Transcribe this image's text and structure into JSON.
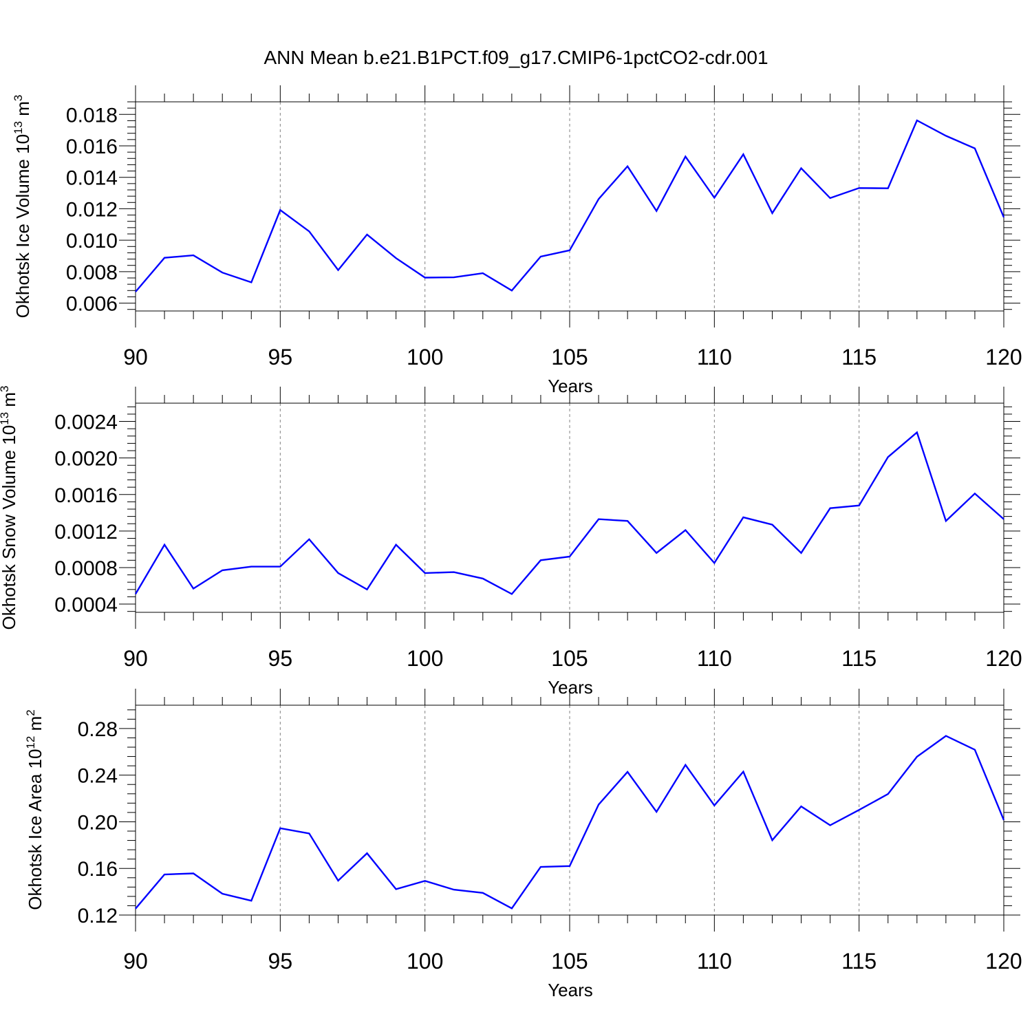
{
  "figure": {
    "title": "ANN Mean b.e21.B1PCT.f09_g17.CMIP6-1pctCO2-cdr.001"
  },
  "colors": {
    "line": "#0000ff",
    "axis": "#000000",
    "grid": "#808080"
  },
  "chart_data": [
    {
      "type": "line",
      "ylabel": "Okhotsk Ice Volume 10",
      "ylabel_exp": "13",
      "ylabel_unit": " m",
      "ylabel_unit_exp": "3",
      "xlabel": "Years",
      "xlim": [
        90,
        120
      ],
      "ylim": [
        0.0055,
        0.0188
      ],
      "xticks": [
        90,
        95,
        100,
        105,
        110,
        115,
        120
      ],
      "xtick_labels": [
        "90",
        "95",
        "100",
        "105",
        "110",
        "115",
        "120"
      ],
      "yticks": [
        0.006,
        0.008,
        0.01,
        0.012,
        0.014,
        0.016,
        0.018
      ],
      "ytick_labels": [
        "0.006",
        "0.008",
        "0.010",
        "0.012",
        "0.014",
        "0.016",
        "0.018"
      ],
      "y_minor_step": 0.0004,
      "x_minor_step": 1,
      "vgrid": true,
      "series": [
        {
          "x": [
            90,
            91,
            92,
            93,
            94,
            95,
            96,
            97,
            98,
            99,
            100,
            101,
            102,
            103,
            104,
            105,
            106,
            107,
            108,
            109,
            110,
            111,
            112,
            113,
            114,
            115,
            116,
            117,
            118,
            119,
            120
          ],
          "values": [
            0.00672,
            0.00888,
            0.00904,
            0.00794,
            0.00732,
            0.01192,
            0.01056,
            0.0081,
            0.01036,
            0.00886,
            0.00762,
            0.00764,
            0.0079,
            0.0068,
            0.00896,
            0.00936,
            0.01262,
            0.0147,
            0.01186,
            0.01532,
            0.0127,
            0.01546,
            0.01172,
            0.01458,
            0.01268,
            0.01332,
            0.0133,
            0.01762,
            0.01664,
            0.01584,
            0.01146
          ]
        }
      ]
    },
    {
      "type": "line",
      "ylabel": "Okhotsk Snow Volume 10",
      "ylabel_exp": "13",
      "ylabel_unit": " m",
      "ylabel_unit_exp": "3",
      "xlabel": "Years",
      "xlim": [
        90,
        120
      ],
      "ylim": [
        0.00031,
        0.0026
      ],
      "xticks": [
        90,
        95,
        100,
        105,
        110,
        115,
        120
      ],
      "xtick_labels": [
        "90",
        "95",
        "100",
        "105",
        "110",
        "115",
        "120"
      ],
      "yticks": [
        0.0004,
        0.0008,
        0.0012,
        0.0016,
        0.002,
        0.0024
      ],
      "ytick_labels": [
        "0.0004",
        "0.0008",
        "0.0012",
        "0.0016",
        "0.0020",
        "0.0024"
      ],
      "y_minor_step": 8e-05,
      "x_minor_step": 1,
      "vgrid": true,
      "series": [
        {
          "x": [
            90,
            91,
            92,
            93,
            94,
            95,
            96,
            97,
            98,
            99,
            100,
            101,
            102,
            103,
            104,
            105,
            106,
            107,
            108,
            109,
            110,
            111,
            112,
            113,
            114,
            115,
            116,
            117,
            118,
            119,
            120
          ],
          "values": [
            0.00051,
            0.00105,
            0.00057,
            0.00077,
            0.00081,
            0.00081,
            0.00111,
            0.00074,
            0.00056,
            0.00105,
            0.00074,
            0.00075,
            0.00068,
            0.00051,
            0.00088,
            0.00092,
            0.00133,
            0.00131,
            0.00096,
            0.00121,
            0.00085,
            0.00135,
            0.00127,
            0.00096,
            0.00145,
            0.00148,
            0.00201,
            0.00228,
            0.00131,
            0.00161,
            0.00133
          ]
        }
      ]
    },
    {
      "type": "line",
      "ylabel": "Okhotsk Ice Area 10",
      "ylabel_exp": "12",
      "ylabel_unit": " m",
      "ylabel_unit_exp": "2",
      "xlabel": "Years",
      "xlim": [
        90,
        120
      ],
      "ylim": [
        0.12,
        0.3
      ],
      "xticks": [
        90,
        95,
        100,
        105,
        110,
        115,
        120
      ],
      "xtick_labels": [
        "90",
        "95",
        "100",
        "105",
        "110",
        "115",
        "120"
      ],
      "yticks": [
        0.12,
        0.16,
        0.2,
        0.24,
        0.28
      ],
      "ytick_labels": [
        "0.12",
        "0.16",
        "0.20",
        "0.24",
        "0.28"
      ],
      "y_minor_step": 0.008,
      "x_minor_step": 1,
      "vgrid": true,
      "series": [
        {
          "x": [
            90,
            91,
            92,
            93,
            94,
            95,
            96,
            97,
            98,
            99,
            100,
            101,
            102,
            103,
            104,
            105,
            106,
            107,
            108,
            109,
            110,
            111,
            112,
            113,
            114,
            115,
            116,
            117,
            118,
            119,
            120
          ],
          "values": [
            0.1255,
            0.1548,
            0.1557,
            0.1383,
            0.1323,
            0.1945,
            0.19,
            0.1495,
            0.173,
            0.1422,
            0.1493,
            0.1418,
            0.139,
            0.1257,
            0.1613,
            0.162,
            0.2148,
            0.2428,
            0.2085,
            0.2488,
            0.214,
            0.243,
            0.1842,
            0.2132,
            0.197,
            0.2102,
            0.2238,
            0.2558,
            0.2737,
            0.2618,
            0.2015
          ]
        }
      ]
    }
  ]
}
